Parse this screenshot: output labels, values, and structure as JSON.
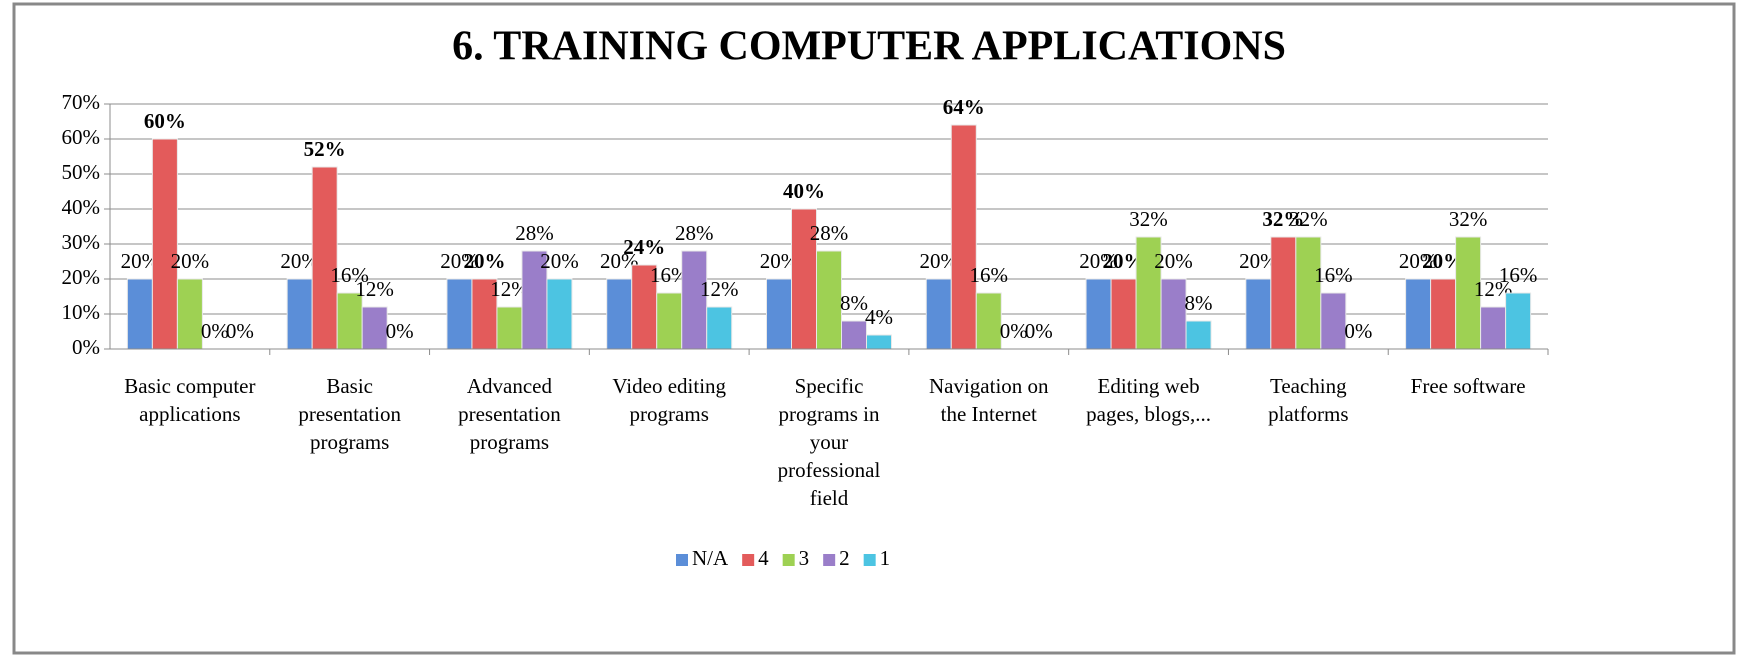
{
  "chart_data": {
    "type": "bar",
    "title": "6. TRAINING COMPUTER APPLICATIONS",
    "categories": [
      "Basic computer applications",
      "Basic presentation programs",
      "Advanced presentation programs",
      "Video editing programs",
      "Specific programs in your professional field",
      "Navigation on the Internet",
      "Editing web pages, blogs,...",
      "Teaching platforms",
      "Free software"
    ],
    "series": [
      {
        "name": "N/A",
        "color": "#5b8ed8",
        "values": [
          20,
          20,
          20,
          20,
          20,
          20,
          20,
          20,
          20
        ],
        "value_labels": [
          "20%",
          "20%",
          "20%",
          "20%",
          "20%",
          "20%",
          "20%",
          "20%",
          "20%"
        ]
      },
      {
        "name": "4",
        "color": "#e35b5b",
        "values": [
          60,
          52,
          20,
          24,
          40,
          64,
          20,
          32,
          20
        ],
        "value_labels": [
          "60%",
          "52%",
          "20%",
          "24%",
          "40%",
          "64%",
          "20%",
          "32%",
          "20%"
        ]
      },
      {
        "name": "3",
        "color": "#9ed153",
        "values": [
          20,
          16,
          12,
          16,
          28,
          16,
          32,
          32,
          32
        ],
        "value_labels": [
          "20%",
          "16%",
          "12%",
          "16%",
          "28%",
          "16%",
          "32%",
          "32%",
          "32%"
        ]
      },
      {
        "name": "2",
        "color": "#9a7ec9",
        "values": [
          0,
          12,
          28,
          28,
          8,
          0,
          20,
          16,
          12
        ],
        "value_labels": [
          "0%",
          "12%",
          "28%",
          "28%",
          "8%",
          "0%",
          "20%",
          "16%",
          "12%"
        ]
      },
      {
        "name": "1",
        "color": "#4cc4e2",
        "values": [
          0,
          0,
          20,
          12,
          4,
          0,
          8,
          0,
          16
        ],
        "value_labels": [
          "0%",
          "0%",
          "20%",
          "12%",
          "4%",
          "0%",
          "8%",
          "0%",
          "16%"
        ]
      }
    ],
    "ylim": [
      0,
      70
    ],
    "yticks": [
      {
        "value": 0,
        "label": "0%"
      },
      {
        "value": 10,
        "label": "10%"
      },
      {
        "value": 20,
        "label": "20%"
      },
      {
        "value": 30,
        "label": "30%"
      },
      {
        "value": 40,
        "label": "40%"
      },
      {
        "value": 50,
        "label": "50%"
      },
      {
        "value": 60,
        "label": "60%"
      },
      {
        "value": 70,
        "label": "70%"
      }
    ],
    "grid": true,
    "legend": "bottom"
  }
}
